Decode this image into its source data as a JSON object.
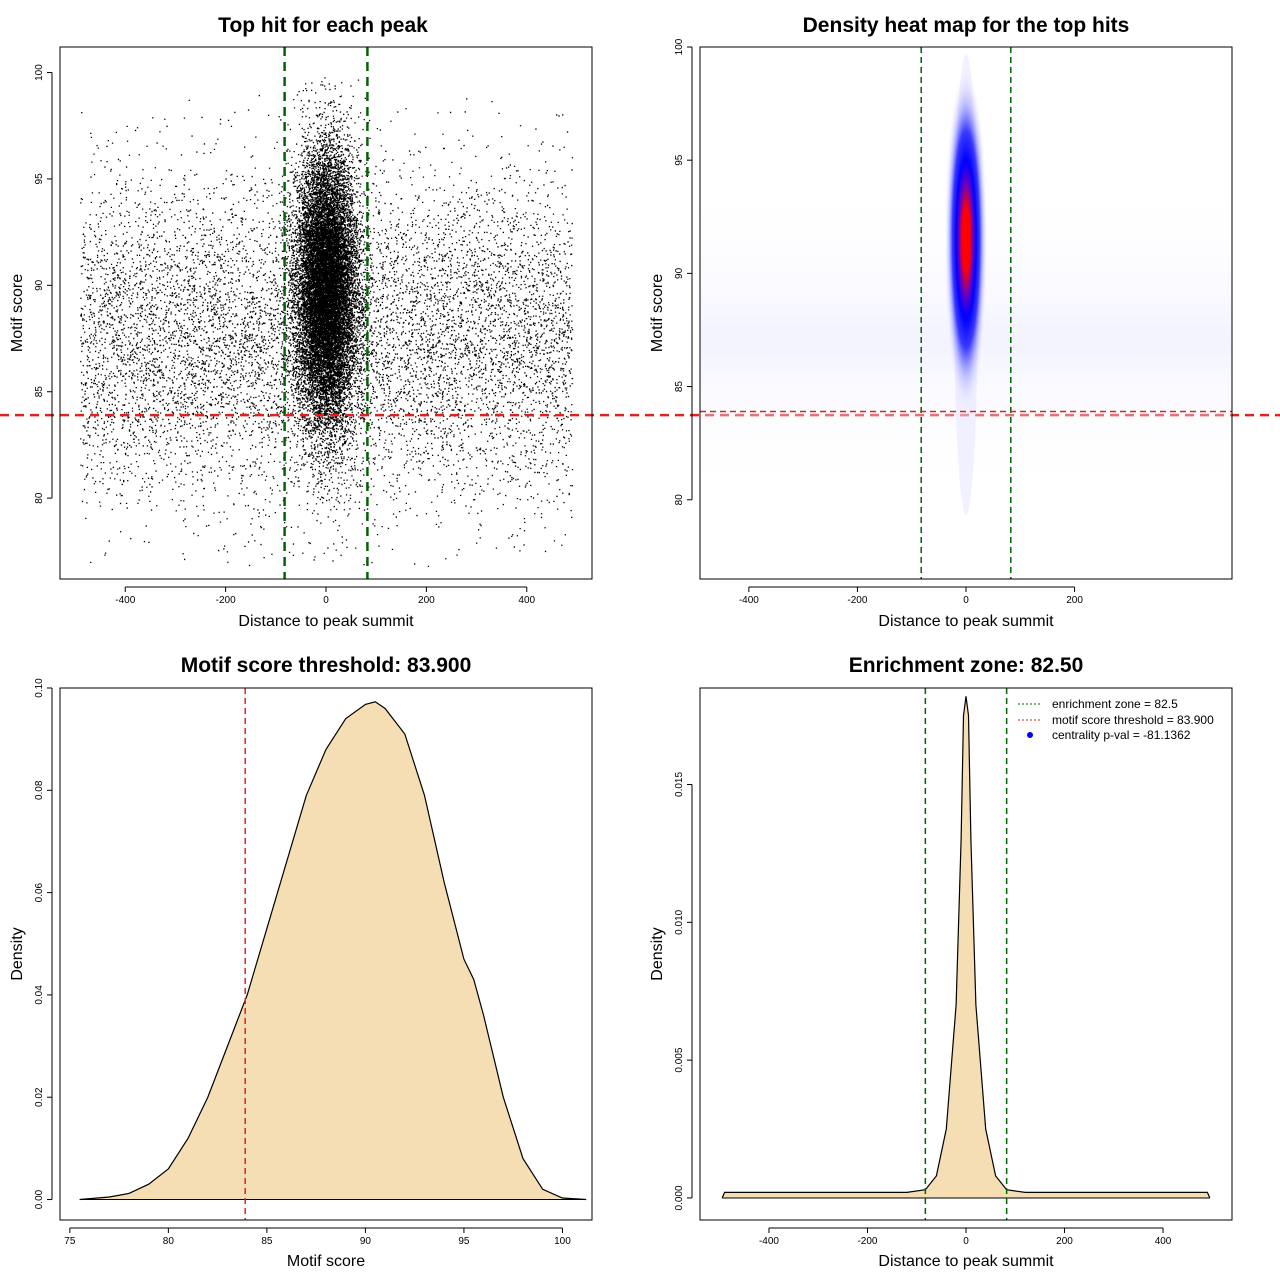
{
  "chart_data": [
    {
      "type": "scatter",
      "title": "Top hit for each peak",
      "xlabel": "Distance to peak summit",
      "ylabel": "Motif score",
      "xlim": [
        -530,
        530
      ],
      "ylim": [
        76.2,
        101.2
      ],
      "xticks": [
        -400,
        -200,
        0,
        200,
        400
      ],
      "yticks": [
        80,
        85,
        90,
        95,
        100
      ],
      "vlines": [
        -82.5,
        82.5
      ],
      "hline": 83.9,
      "background_x_range": [
        -490,
        490
      ],
      "background_y_mean": 87.5,
      "background_y_sd": 3.8,
      "central_x_sd": 30,
      "central_y_mean": 89.8,
      "central_y_sd": 3.2,
      "colors": {
        "points": "#000000",
        "vline": "#006400",
        "hline": "#dd2222"
      }
    },
    {
      "type": "heatmap",
      "title": "Density heat map for the top hits",
      "xlabel": "Distance to peak summit",
      "ylabel": "Motif score",
      "xlim": [
        -490,
        490
      ],
      "ylim": [
        76.5,
        100
      ],
      "xticks": [
        -400,
        -200,
        0,
        200
      ],
      "yticks": [
        80,
        85,
        90,
        95,
        100
      ],
      "vlines": [
        -82.5,
        82.5
      ],
      "hline": 83.9,
      "peak_x": 0,
      "peak_y": 91.5,
      "colors": {
        "high": "#ff0000",
        "mid": "#0000ff",
        "low": "#ffffff",
        "vline": "#006400",
        "hline": "#dd2222"
      }
    },
    {
      "type": "area",
      "title": "Motif score threshold: 83.900",
      "xlabel": "Motif score",
      "ylabel": "Density",
      "xlim": [
        74.5,
        101.5
      ],
      "ylim": [
        -0.004,
        0.1
      ],
      "xticks": [
        75,
        80,
        85,
        90,
        95,
        100
      ],
      "yticks": [
        0.0,
        0.02,
        0.04,
        0.06,
        0.08,
        0.1
      ],
      "ytick_labels": [
        "0.00",
        "0.02",
        "0.04",
        "0.06",
        "0.08",
        "0.10"
      ],
      "vline": 83.9,
      "x": [
        75.5,
        77,
        78,
        79,
        80,
        81,
        82,
        83,
        84,
        85,
        86,
        87,
        88,
        89,
        90,
        90.5,
        91,
        92,
        93,
        94,
        95,
        95.5,
        96,
        97,
        98,
        99,
        100,
        101.2
      ],
      "y": [
        0.0,
        0.0005,
        0.0012,
        0.003,
        0.006,
        0.012,
        0.02,
        0.03,
        0.04,
        0.053,
        0.066,
        0.079,
        0.088,
        0.094,
        0.0968,
        0.0973,
        0.096,
        0.091,
        0.079,
        0.062,
        0.047,
        0.043,
        0.036,
        0.02,
        0.008,
        0.002,
        0.0003,
        0.0
      ],
      "colors": {
        "fill": "#f5deb3",
        "line": "#000000",
        "vline": "#dd2222"
      }
    },
    {
      "type": "area",
      "title": "Enrichment zone: 82.50",
      "xlabel": "Distance to peak summit",
      "ylabel": "Density",
      "xlim": [
        -540,
        540
      ],
      "ylim": [
        -0.0008,
        0.0185
      ],
      "xticks": [
        -400,
        -200,
        0,
        200,
        400
      ],
      "yticks": [
        0.0,
        0.005,
        0.01,
        0.015
      ],
      "ytick_labels": [
        "0.000",
        "0.005",
        "0.010",
        "0.015"
      ],
      "vlines": [
        -82.5,
        82.5
      ],
      "x": [
        -495,
        -490,
        -400,
        -300,
        -200,
        -120,
        -82.5,
        -60,
        -40,
        -20,
        -10,
        -5,
        0,
        5,
        10,
        20,
        40,
        60,
        82.5,
        120,
        200,
        300,
        400,
        490,
        495
      ],
      "y": [
        0.0,
        0.0002,
        0.0002,
        0.0002,
        0.0002,
        0.0002,
        0.0003,
        0.0008,
        0.0025,
        0.007,
        0.013,
        0.0175,
        0.0182,
        0.0175,
        0.013,
        0.007,
        0.0025,
        0.0008,
        0.0003,
        0.0002,
        0.0002,
        0.0002,
        0.0002,
        0.0002,
        0.0
      ],
      "legend": [
        {
          "label": "enrichment zone = 82.5",
          "style": "dotted",
          "color": "#006400"
        },
        {
          "label": "motif score threshold = 83.900",
          "style": "dotted",
          "color": "#dd2222"
        },
        {
          "label": "centrality p-val = -81.1362",
          "style": "point",
          "color": "#0000ff"
        }
      ],
      "legend_position": "top-right",
      "colors": {
        "fill": "#f5deb3",
        "line": "#000000",
        "vline": "#006400"
      }
    }
  ]
}
